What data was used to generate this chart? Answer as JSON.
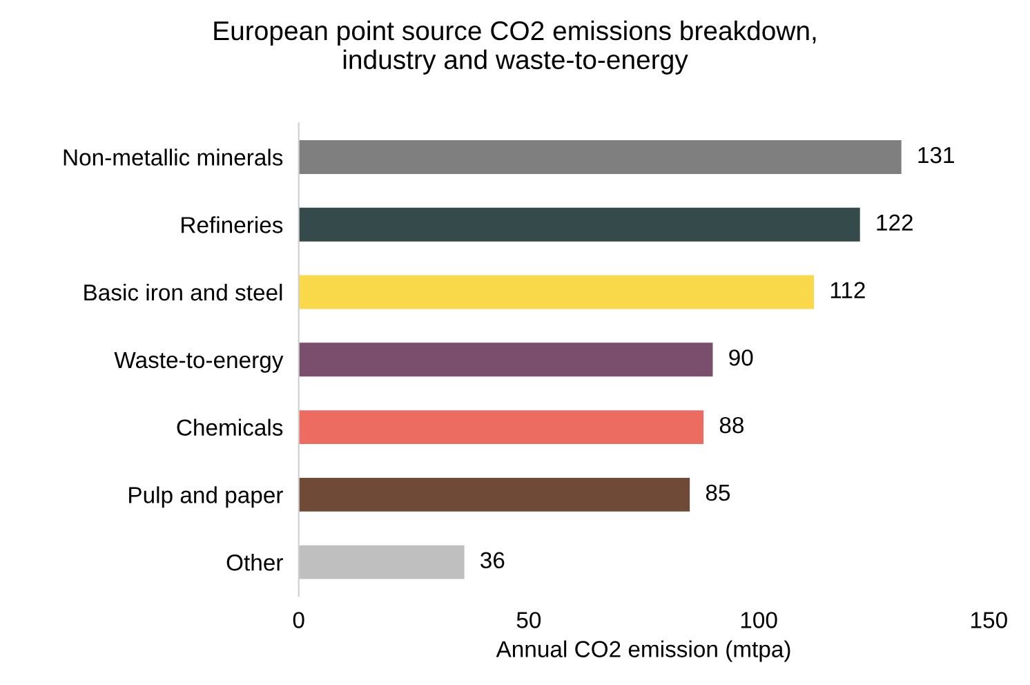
{
  "chart_data": {
    "type": "bar",
    "orientation": "horizontal",
    "title": "European point source CO2 emissions breakdown,\nindustry and waste-to-energy",
    "xlabel": "Annual CO2 emission (mtpa)",
    "categories": [
      "Non-metallic minerals",
      "Refineries",
      "Basic iron and steel",
      "Waste-to-energy",
      "Chemicals",
      "Pulp and paper",
      "Other"
    ],
    "values": [
      131,
      122,
      112,
      90,
      88,
      85,
      36
    ],
    "colors": [
      "#7f7f7f",
      "#354a4a",
      "#f9d94a",
      "#7a4f6e",
      "#ec6c62",
      "#6f4a36",
      "#bfbfbf"
    ],
    "xlim": [
      0,
      150
    ],
    "xticks": [
      0,
      50,
      100,
      150
    ],
    "data_labels": true,
    "grid": false,
    "legend": false
  }
}
